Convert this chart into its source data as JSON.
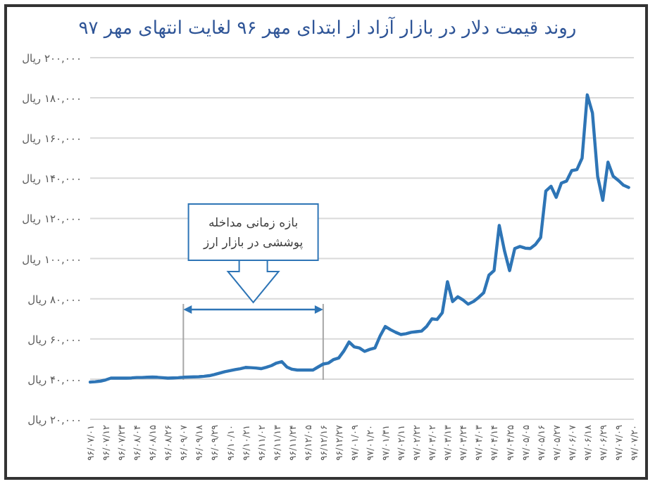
{
  "chart_data": {
    "type": "line",
    "title": "روند قیمت دلار در بازار آزاد از ابتدای مهر ۹۶ لغایت انتهای مهر ۹۷",
    "categories": [
      "۹۶/۰۷/۰۱",
      null,
      null,
      "۹۶/۰۷/۱۲",
      null,
      null,
      "۹۶/۰۷/۲۳",
      null,
      null,
      "۹۶/۰۸/۰۴",
      null,
      null,
      "۹۶/۰۸/۱۵",
      null,
      null,
      "۹۶/۰۸/۲۶",
      null,
      null,
      "۹۶/۰۹/۰۷",
      null,
      null,
      "۹۶/۰۹/۱۸",
      null,
      null,
      "۹۶/۰۹/۲۹",
      null,
      null,
      "۹۶/۱۰/۱۰",
      null,
      null,
      "۹۶/۱۰/۲۱",
      null,
      null,
      "۹۶/۱۱/۰۲",
      null,
      null,
      "۹۶/۱۱/۱۳",
      null,
      null,
      "۹۶/۱۱/۲۴",
      null,
      null,
      "۹۶/۱۲/۰۵",
      null,
      null,
      "۹۶/۱۲/۱۶",
      null,
      null,
      "۹۶/۱۲/۲۷",
      null,
      null,
      "۹۷/۰۱/۰۹",
      null,
      null,
      "۹۷/۰۱/۲۰",
      null,
      null,
      "۹۷/۰۱/۳۱",
      null,
      null,
      "۹۷/۰۲/۱۱",
      null,
      null,
      "۹۷/۰۲/۲۲",
      null,
      null,
      "۹۷/۰۳/۰۲",
      null,
      null,
      "۹۷/۰۳/۱۳",
      null,
      null,
      "۹۷/۰۳/۲۴",
      null,
      null,
      "۹۷/۰۴/۰۳",
      null,
      null,
      "۹۷/۰۴/۱۴",
      null,
      null,
      "۹۷/۰۴/۲۵",
      null,
      null,
      "۹۷/۰۵/۰۵",
      null,
      null,
      "۹۷/۰۵/۱۶",
      null,
      null,
      "۹۷/۰۵/۲۷",
      null,
      null,
      "۹۷/۰۶/۰۷",
      null,
      null,
      "۹۷/۰۶/۱۸",
      null,
      null,
      "۹۷/۰۶/۲۹",
      null,
      null,
      "۹۷/۰۷/۰۹",
      null,
      null,
      "۹۷/۰۷/۲۰"
    ],
    "series": [
      {
        "color": "#2e75b6",
        "values": [
          38500,
          38700,
          39000,
          39600,
          40500,
          40500,
          40500,
          40500,
          40600,
          40800,
          40800,
          40900,
          41000,
          40900,
          40700,
          40500,
          40600,
          40700,
          40900,
          41000,
          41100,
          41200,
          41400,
          41700,
          42300,
          43000,
          43700,
          44200,
          44700,
          45200,
          45800,
          45700,
          45500,
          45200,
          45900,
          46700,
          48000,
          48700,
          46000,
          44900,
          44500,
          44500,
          44500,
          44500,
          46000,
          47500,
          48000,
          49700,
          50500,
          54000,
          58500,
          56000,
          55500,
          53800,
          54800,
          55500,
          61500,
          66200,
          64600,
          63300,
          62200,
          62600,
          63300,
          63600,
          63900,
          66300,
          70000,
          69700,
          73000,
          88500,
          78600,
          81000,
          79400,
          77300,
          78600,
          80600,
          83000,
          91700,
          94000,
          116500,
          104000,
          94000,
          105000,
          106000,
          105200,
          105000,
          107000,
          110500,
          133600,
          136000,
          130500,
          137600,
          138600,
          143800,
          144300,
          150000,
          181500,
          172500,
          141000,
          129000,
          148000,
          141000,
          138900,
          136500,
          135400,
          null
        ]
      }
    ],
    "ylim": [
      20000,
      200000
    ],
    "yticks": [
      {
        "value": 20000,
        "label": "۲۰,۰۰۰ ریال"
      },
      {
        "value": 40000,
        "label": "۴۰,۰۰۰ ریال"
      },
      {
        "value": 60000,
        "label": "۶۰,۰۰۰ ریال"
      },
      {
        "value": 80000,
        "label": "۸۰,۰۰۰ ریال"
      },
      {
        "value": 100000,
        "label": "۱۰۰,۰۰۰ ریال"
      },
      {
        "value": 120000,
        "label": "۱۲۰,۰۰۰ ریال"
      },
      {
        "value": 140000,
        "label": "۱۴۰,۰۰۰ ریال"
      },
      {
        "value": 160000,
        "label": "۱۶۰,۰۰۰ ریال"
      },
      {
        "value": 180000,
        "label": "۱۸۰,۰۰۰ ریال"
      },
      {
        "value": 200000,
        "label": "۲۰۰,۰۰۰ ریال"
      }
    ],
    "bands": [
      {
        "axis": "x",
        "from": "۹۶/۰۹/۰۷",
        "to": "۹۶/۱۲/۱۶",
        "label": "بازه زمانی مداخله\nپوششی در بازار ارز",
        "color": "#2e75b6"
      }
    ],
    "grid": "y",
    "line_style": "solid",
    "marker": "none"
  }
}
